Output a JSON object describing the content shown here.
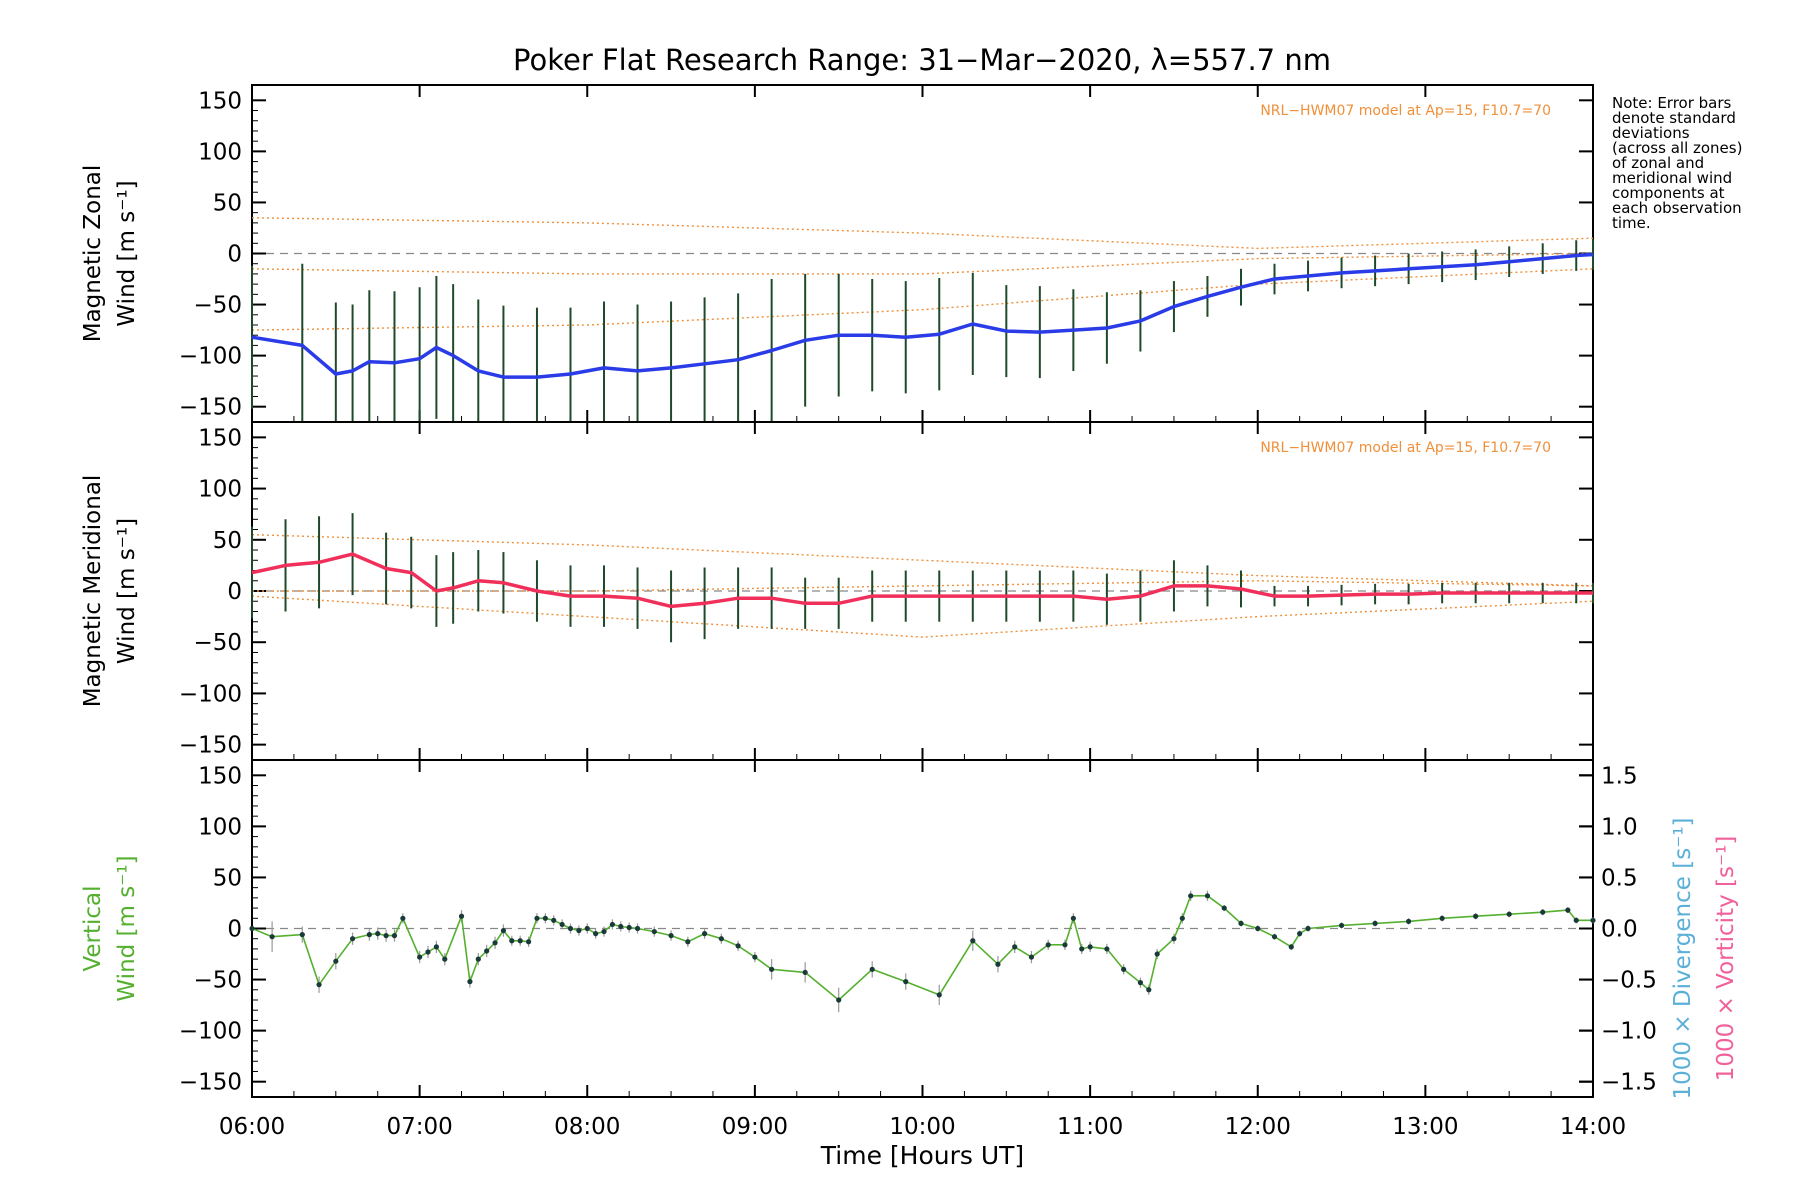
{
  "title": "Poker Flat Research Range: 31−Mar−2020, λ=557.7 nm",
  "note": [
    "Note: Error bars",
    "denote standard",
    "deviations",
    "(across all zones)",
    "of zonal and",
    "meridional wind",
    "components at",
    "each observation",
    "time."
  ],
  "colors": {
    "zonal": "#2a3be8",
    "meridional": "#f0305a",
    "vertical": "#55b030",
    "model": "#f0903a",
    "error_bar": "#1f4a2a",
    "divergence": "#5bb0d8",
    "vorticity": "#f0609a"
  },
  "chart_data": [
    {
      "type": "line",
      "panel": "zonal",
      "ylabel_lines": [
        "Magnetic Zonal",
        "Wind [m s⁻¹]"
      ],
      "model_label": "NRL−HWM07 model at Ap=15, F10.7=70",
      "ylim": [
        -165,
        165
      ],
      "yticks": [
        150,
        100,
        50,
        0,
        -50,
        -100,
        -150
      ],
      "tick_labels": [
        "150",
        "100",
        "50",
        "0",
        "−50",
        "−100",
        "−150"
      ],
      "x": [
        6.0,
        6.3,
        6.5,
        6.6,
        6.7,
        6.85,
        7.0,
        7.1,
        7.2,
        7.35,
        7.5,
        7.7,
        7.9,
        8.1,
        8.3,
        8.5,
        8.7,
        8.9,
        9.1,
        9.3,
        9.5,
        9.7,
        9.9,
        10.1,
        10.3,
        10.5,
        10.7,
        10.9,
        11.1,
        11.3,
        11.5,
        11.7,
        11.9,
        12.1,
        12.3,
        12.5,
        12.7,
        12.9,
        13.1,
        13.3,
        13.5,
        13.7,
        13.9,
        14.0
      ],
      "y": [
        -82,
        -90,
        -118,
        -115,
        -106,
        -107,
        -103,
        -92,
        -100,
        -115,
        -121,
        -121,
        -118,
        -112,
        -115,
        -112,
        -108,
        -104,
        -95,
        -85,
        -80,
        -80,
        -82,
        -79,
        -69,
        -76,
        -77,
        -75,
        -73,
        -66,
        -52,
        -42,
        -33,
        -25,
        -22,
        -19,
        -17,
        -15,
        -13,
        -11,
        -8,
        -5,
        -2,
        -1
      ],
      "err": [
        70,
        80,
        70,
        65,
        70,
        70,
        70,
        70,
        70,
        70,
        70,
        68,
        65,
        65,
        65,
        65,
        65,
        65,
        70,
        65,
        60,
        55,
        55,
        55,
        50,
        45,
        45,
        40,
        35,
        30,
        25,
        20,
        18,
        15,
        15,
        15,
        15,
        15,
        15,
        15,
        15,
        15,
        15,
        15
      ],
      "model_x": [
        6.0,
        8.0,
        10.0,
        12.0,
        14.0
      ],
      "model_upper": [
        35,
        30,
        20,
        5,
        15
      ],
      "model_mid": [
        -15,
        -20,
        -20,
        -5,
        0
      ],
      "model_lower": [
        -75,
        -70,
        -55,
        -30,
        -15
      ]
    },
    {
      "type": "line",
      "panel": "meridional",
      "ylabel_lines": [
        "Magnetic Meridional",
        "Wind [m s⁻¹]"
      ],
      "model_label": "NRL−HWM07 model at Ap=15, F10.7=70",
      "ylim": [
        -165,
        165
      ],
      "yticks": [
        150,
        100,
        50,
        0,
        -50,
        -100,
        -150
      ],
      "tick_labels": [
        "150",
        "100",
        "50",
        "0",
        "−50",
        "−100",
        "−150"
      ],
      "x": [
        6.0,
        6.2,
        6.4,
        6.6,
        6.8,
        6.95,
        7.1,
        7.2,
        7.35,
        7.5,
        7.7,
        7.9,
        8.1,
        8.3,
        8.5,
        8.7,
        8.9,
        9.1,
        9.3,
        9.5,
        9.7,
        9.9,
        10.1,
        10.3,
        10.5,
        10.7,
        10.9,
        11.1,
        11.3,
        11.5,
        11.7,
        11.9,
        12.1,
        12.3,
        12.5,
        12.7,
        12.9,
        13.1,
        13.3,
        13.5,
        13.7,
        13.9,
        14.0
      ],
      "y": [
        18,
        25,
        28,
        36,
        22,
        18,
        0,
        3,
        10,
        8,
        0,
        -5,
        -5,
        -7,
        -15,
        -12,
        -7,
        -7,
        -12,
        -12,
        -5,
        -5,
        -5,
        -5,
        -5,
        -5,
        -5,
        -8,
        -5,
        5,
        5,
        2,
        -5,
        -5,
        -4,
        -3,
        -3,
        -2,
        -2,
        -2,
        -2,
        -2,
        -2
      ],
      "err": [
        45,
        45,
        45,
        40,
        35,
        35,
        35,
        35,
        30,
        30,
        30,
        30,
        30,
        30,
        35,
        35,
        30,
        30,
        25,
        25,
        25,
        25,
        25,
        25,
        25,
        25,
        25,
        25,
        25,
        25,
        20,
        18,
        10,
        10,
        10,
        10,
        10,
        10,
        10,
        10,
        10,
        10,
        10
      ],
      "model_x": [
        6.0,
        8.0,
        10.0,
        12.0,
        14.0
      ],
      "model_upper": [
        55,
        45,
        30,
        15,
        5
      ],
      "model_mid": [
        0,
        0,
        5,
        10,
        5
      ],
      "model_lower": [
        -5,
        -25,
        -45,
        -25,
        -10
      ]
    },
    {
      "type": "line",
      "panel": "vertical",
      "ylabel_lines": [
        "Vertical",
        "Wind [m s⁻¹]"
      ],
      "ylim": [
        -165,
        165
      ],
      "yticks": [
        150,
        100,
        50,
        0,
        -50,
        -100,
        -150
      ],
      "tick_labels": [
        "150",
        "100",
        "50",
        "0",
        "−50",
        "−100",
        "−150"
      ],
      "right_axis": {
        "ylim": [
          -1.65,
          1.65
        ],
        "yticks": [
          1.5,
          1.0,
          0.5,
          0.0,
          -0.5,
          -1.0,
          -1.5
        ],
        "tick_labels": [
          "1.5",
          "1.0",
          "0.5",
          "0.0",
          "−0.5",
          "−1.0",
          "−1.5"
        ],
        "label_divergence": "1000 × Divergence [s⁻¹]",
        "label_vorticity": "1000 × Vorticity [s⁻¹]"
      },
      "x": [
        6.0,
        6.12,
        6.3,
        6.4,
        6.5,
        6.6,
        6.7,
        6.75,
        6.8,
        6.85,
        6.9,
        7.0,
        7.05,
        7.1,
        7.15,
        7.25,
        7.3,
        7.35,
        7.4,
        7.45,
        7.5,
        7.55,
        7.6,
        7.65,
        7.7,
        7.75,
        7.8,
        7.85,
        7.9,
        7.95,
        8.0,
        8.05,
        8.1,
        8.15,
        8.2,
        8.25,
        8.3,
        8.4,
        8.5,
        8.6,
        8.7,
        8.8,
        8.9,
        9.0,
        9.1,
        9.3,
        9.5,
        9.7,
        9.9,
        10.1,
        10.3,
        10.45,
        10.55,
        10.65,
        10.75,
        10.85,
        10.9,
        10.95,
        11.0,
        11.1,
        11.2,
        11.3,
        11.35,
        11.4,
        11.5,
        11.55,
        11.6,
        11.7,
        11.8,
        11.9,
        12.0,
        12.1,
        12.2,
        12.25,
        12.3,
        12.5,
        12.7,
        12.9,
        13.1,
        13.3,
        13.5,
        13.7,
        13.85,
        13.9,
        14.0
      ],
      "y": [
        0,
        -8,
        -6,
        -55,
        -32,
        -10,
        -6,
        -5,
        -7,
        -7,
        10,
        -28,
        -23,
        -18,
        -30,
        12,
        -52,
        -30,
        -22,
        -14,
        -2,
        -12,
        -12,
        -13,
        10,
        10,
        8,
        4,
        0,
        -2,
        0,
        -5,
        -3,
        4,
        2,
        1,
        0,
        -3,
        -7,
        -13,
        -5,
        -10,
        -17,
        -28,
        -40,
        -43,
        -70,
        -40,
        -52,
        -65,
        -12,
        -35,
        -18,
        -28,
        -16,
        -16,
        10,
        -20,
        -18,
        -20,
        -40,
        -53,
        -60,
        -25,
        -10,
        10,
        32,
        32,
        20,
        5,
        0,
        -8,
        -18,
        -5,
        0,
        3,
        5,
        7,
        10,
        12,
        14,
        16,
        18,
        8,
        8
      ],
      "err": [
        0,
        15,
        8,
        8,
        8,
        6,
        6,
        6,
        6,
        6,
        5,
        6,
        6,
        6,
        6,
        6,
        6,
        6,
        6,
        6,
        6,
        5,
        5,
        5,
        5,
        5,
        5,
        5,
        5,
        5,
        5,
        5,
        5,
        5,
        5,
        5,
        5,
        5,
        5,
        5,
        5,
        5,
        5,
        5,
        10,
        10,
        12,
        8,
        8,
        10,
        10,
        8,
        6,
        6,
        5,
        5,
        5,
        5,
        5,
        5,
        5,
        5,
        5,
        5,
        5,
        5,
        5,
        5,
        3,
        3,
        3,
        3,
        3,
        3,
        3,
        3,
        3,
        3,
        3,
        3,
        3,
        3,
        3,
        3,
        3
      ]
    }
  ],
  "x_axis": {
    "label": "Time [Hours UT]",
    "range": [
      6,
      14
    ],
    "ticks": [
      6,
      7,
      8,
      9,
      10,
      11,
      12,
      13,
      14
    ],
    "tick_labels": [
      "06:00",
      "07:00",
      "08:00",
      "09:00",
      "10:00",
      "11:00",
      "12:00",
      "13:00",
      "14:00"
    ]
  }
}
